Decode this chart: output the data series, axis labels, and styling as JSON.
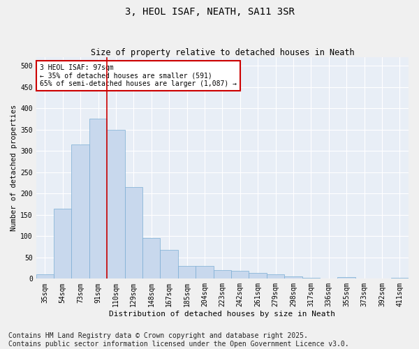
{
  "title": "3, HEOL ISAF, NEATH, SA11 3SR",
  "subtitle": "Size of property relative to detached houses in Neath",
  "xlabel": "Distribution of detached houses by size in Neath",
  "ylabel": "Number of detached properties",
  "bar_color": "#c8d8ed",
  "bar_edge_color": "#7aadd4",
  "background_color": "#e8eef6",
  "grid_color": "#ffffff",
  "annotation_box_color": "#cc0000",
  "annotation_text": "3 HEOL ISAF: 97sqm\n← 35% of detached houses are smaller (591)\n65% of semi-detached houses are larger (1,087) →",
  "vline_x": 3.5,
  "vline_color": "#cc0000",
  "categories": [
    "35sqm",
    "54sqm",
    "73sqm",
    "91sqm",
    "110sqm",
    "129sqm",
    "148sqm",
    "167sqm",
    "185sqm",
    "204sqm",
    "223sqm",
    "242sqm",
    "261sqm",
    "279sqm",
    "298sqm",
    "317sqm",
    "336sqm",
    "355sqm",
    "373sqm",
    "392sqm",
    "411sqm"
  ],
  "values": [
    10,
    165,
    315,
    375,
    350,
    215,
    95,
    68,
    30,
    30,
    20,
    18,
    14,
    10,
    6,
    2,
    0,
    4,
    0,
    0,
    2
  ],
  "ylim": [
    0,
    520
  ],
  "yticks": [
    0,
    50,
    100,
    150,
    200,
    250,
    300,
    350,
    400,
    450,
    500
  ],
  "footnote": "Contains HM Land Registry data © Crown copyright and database right 2025.\nContains public sector information licensed under the Open Government Licence v3.0.",
  "footnote_fontsize": 7,
  "title_fontsize": 10,
  "subtitle_fontsize": 8.5,
  "ylabel_fontsize": 7.5,
  "xlabel_fontsize": 8,
  "tick_fontsize": 7,
  "annot_fontsize": 7
}
